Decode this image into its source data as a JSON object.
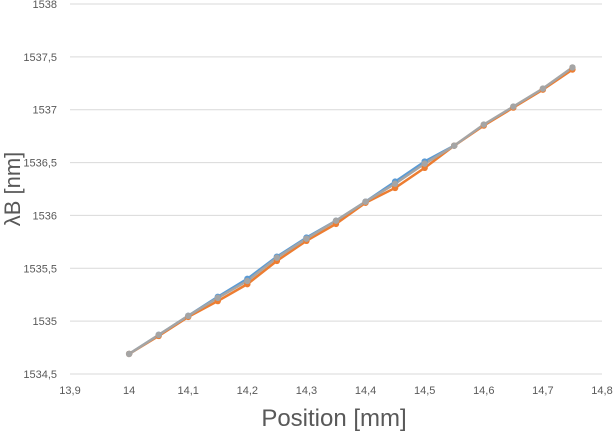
{
  "chart_data": {
    "type": "line",
    "xlabel": "Position [mm]",
    "ylabel": "λB  [nm]",
    "xlim": [
      13.9,
      14.8
    ],
    "ylim": [
      1534.5,
      1538
    ],
    "x_ticks": [
      "13,9",
      "14",
      "14,1",
      "14,2",
      "14,3",
      "14,4",
      "14,5",
      "14,6",
      "14,7",
      "14,8"
    ],
    "y_ticks": [
      "1534,5",
      "1535",
      "1535,5",
      "1536",
      "1536,5",
      "1537",
      "1537,5",
      "1538"
    ],
    "grid": "horizontal",
    "series": [
      {
        "color": "#5b9bd5",
        "x": [
          14.0,
          14.05,
          14.1,
          14.15,
          14.2,
          14.25,
          14.3,
          14.35,
          14.4,
          14.45,
          14.5,
          14.55
        ],
        "y": [
          1534.69,
          1534.87,
          1535.05,
          1535.23,
          1535.4,
          1535.61,
          1535.79,
          1535.95,
          1536.13,
          1536.32,
          1536.51,
          1536.66
        ]
      },
      {
        "color": "#ed7d31",
        "x": [
          14.0,
          14.05,
          14.1,
          14.15,
          14.2,
          14.25,
          14.3,
          14.35,
          14.4,
          14.45,
          14.5,
          14.55,
          14.6,
          14.65,
          14.7,
          14.75
        ],
        "y": [
          1534.69,
          1534.86,
          1535.04,
          1535.19,
          1535.35,
          1535.57,
          1535.76,
          1535.92,
          1536.12,
          1536.26,
          1536.45,
          1536.66,
          1536.85,
          1537.02,
          1537.19,
          1537.38
        ]
      },
      {
        "color": "#a5a5a5",
        "x": [
          14.0,
          14.05,
          14.1,
          14.15,
          14.2,
          14.25,
          14.3,
          14.35,
          14.4,
          14.45,
          14.5,
          14.55,
          14.6,
          14.65,
          14.7,
          14.75
        ],
        "y": [
          1534.69,
          1534.87,
          1535.05,
          1535.22,
          1535.38,
          1535.6,
          1535.78,
          1535.95,
          1536.13,
          1536.3,
          1536.49,
          1536.66,
          1536.86,
          1537.03,
          1537.2,
          1537.4
        ]
      }
    ]
  }
}
